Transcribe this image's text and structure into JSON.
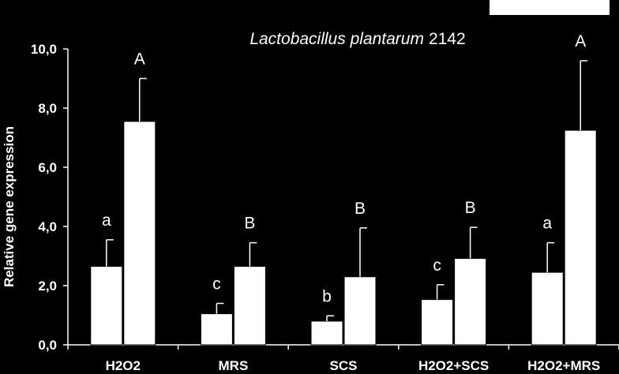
{
  "chart_data": {
    "type": "bar",
    "title_italic": "Lactobacillus plantarum",
    "title_rest": "2142",
    "ylabel": "Relative gene expression",
    "xlabel": "",
    "ylim": [
      0,
      10
    ],
    "yticks": [
      "0,0",
      "2,0",
      "4,0",
      "6,0",
      "8,0",
      "10,0"
    ],
    "categories": [
      "H2O2",
      "MRS",
      "SCS",
      "H2O2+SCS",
      "H2O2+MRS"
    ],
    "series": [
      {
        "values": [
          2.65,
          1.05,
          0.8,
          1.53,
          2.45
        ],
        "errors": [
          0.9,
          0.35,
          0.18,
          0.5,
          1.0
        ],
        "labels": [
          "a",
          "c",
          "b",
          "c",
          "a"
        ],
        "color": "#ffffff"
      },
      {
        "values": [
          7.55,
          2.65,
          2.3,
          2.92,
          7.25
        ],
        "errors": [
          1.45,
          0.8,
          1.65,
          1.05,
          2.35
        ],
        "labels": [
          "A",
          "B",
          "B",
          "B",
          "A"
        ],
        "color": "#ffffff"
      }
    ],
    "legend": {
      "position": "top-right",
      "entries": []
    },
    "grid": false,
    "colors": {
      "background": "#000000",
      "bars": "#ffffff",
      "axes": "#ffffff"
    }
  }
}
